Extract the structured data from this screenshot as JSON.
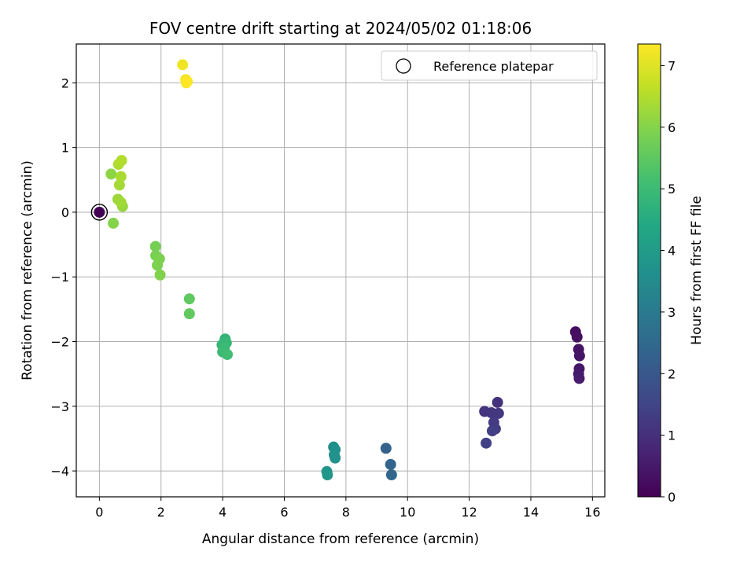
{
  "chart_data": {
    "type": "scatter",
    "title": "FOV centre drift starting at 2024/05/02 01:18:06",
    "xlabel": "Angular distance from reference (arcmin)",
    "ylabel": "Rotation from reference (arcmin)",
    "xlim": [
      -0.75,
      16.4
    ],
    "ylim": [
      -4.4,
      2.6
    ],
    "xticks": [
      0,
      2,
      4,
      6,
      8,
      10,
      12,
      14,
      16
    ],
    "yticks": [
      -4,
      -3,
      -2,
      -1,
      0,
      1,
      2
    ],
    "grid": true,
    "legend": {
      "position": "top-right",
      "entries": [
        "Reference platepar"
      ]
    },
    "reference_point": {
      "x": 0,
      "y": 0
    },
    "colorbar": {
      "label": "Hours from first FF file",
      "colormap": "viridis",
      "range": [
        0,
        7.35
      ],
      "ticks": [
        0,
        1,
        2,
        3,
        4,
        5,
        6,
        7
      ]
    },
    "points": [
      {
        "x": 0.0,
        "y": 0.0,
        "t": 0.0
      },
      {
        "x": 15.45,
        "y": -1.85,
        "t": 0.25
      },
      {
        "x": 15.5,
        "y": -1.93,
        "t": 0.3
      },
      {
        "x": 15.55,
        "y": -2.12,
        "t": 0.35
      },
      {
        "x": 15.58,
        "y": -2.22,
        "t": 0.4
      },
      {
        "x": 15.57,
        "y": -2.42,
        "t": 0.45
      },
      {
        "x": 15.55,
        "y": -2.5,
        "t": 0.5
      },
      {
        "x": 15.57,
        "y": -2.57,
        "t": 0.55
      },
      {
        "x": 12.92,
        "y": -2.94,
        "t": 1.05
      },
      {
        "x": 12.5,
        "y": -3.08,
        "t": 1.1
      },
      {
        "x": 12.72,
        "y": -3.1,
        "t": 1.15
      },
      {
        "x": 12.95,
        "y": -3.11,
        "t": 1.2
      },
      {
        "x": 12.8,
        "y": -3.25,
        "t": 1.25
      },
      {
        "x": 12.85,
        "y": -3.35,
        "t": 1.3
      },
      {
        "x": 12.75,
        "y": -3.38,
        "t": 1.35
      },
      {
        "x": 12.55,
        "y": -3.57,
        "t": 1.4
      },
      {
        "x": 9.3,
        "y": -3.65,
        "t": 2.3
      },
      {
        "x": 9.45,
        "y": -3.9,
        "t": 2.35
      },
      {
        "x": 9.48,
        "y": -4.06,
        "t": 2.4
      },
      {
        "x": 7.6,
        "y": -3.63,
        "t": 3.6
      },
      {
        "x": 7.65,
        "y": -3.67,
        "t": 3.65
      },
      {
        "x": 7.62,
        "y": -3.75,
        "t": 3.7
      },
      {
        "x": 7.65,
        "y": -3.8,
        "t": 3.7
      },
      {
        "x": 7.38,
        "y": -4.01,
        "t": 3.8
      },
      {
        "x": 7.4,
        "y": -4.06,
        "t": 3.85
      },
      {
        "x": 4.08,
        "y": -1.96,
        "t": 4.8
      },
      {
        "x": 3.98,
        "y": -2.05,
        "t": 4.85
      },
      {
        "x": 4.12,
        "y": -2.02,
        "t": 4.9
      },
      {
        "x": 4.05,
        "y": -2.1,
        "t": 4.95
      },
      {
        "x": 4.0,
        "y": -2.16,
        "t": 5.0
      },
      {
        "x": 4.15,
        "y": -2.2,
        "t": 5.05
      },
      {
        "x": 2.92,
        "y": -1.34,
        "t": 5.5
      },
      {
        "x": 2.92,
        "y": -1.57,
        "t": 5.55
      },
      {
        "x": 1.82,
        "y": -0.53,
        "t": 5.8
      },
      {
        "x": 1.83,
        "y": -0.67,
        "t": 5.85
      },
      {
        "x": 1.95,
        "y": -0.72,
        "t": 5.9
      },
      {
        "x": 1.88,
        "y": -0.82,
        "t": 5.9
      },
      {
        "x": 1.97,
        "y": -0.97,
        "t": 5.95
      },
      {
        "x": 0.45,
        "y": -0.17,
        "t": 6.0
      },
      {
        "x": 0.38,
        "y": 0.59,
        "t": 6.1
      },
      {
        "x": 0.75,
        "y": 0.09,
        "t": 6.2
      },
      {
        "x": 0.6,
        "y": 0.2,
        "t": 6.25
      },
      {
        "x": 0.7,
        "y": 0.15,
        "t": 6.3
      },
      {
        "x": 0.65,
        "y": 0.42,
        "t": 6.35
      },
      {
        "x": 0.7,
        "y": 0.55,
        "t": 6.4
      },
      {
        "x": 0.62,
        "y": 0.74,
        "t": 6.45
      },
      {
        "x": 0.72,
        "y": 0.8,
        "t": 6.5
      },
      {
        "x": 2.7,
        "y": 2.28,
        "t": 7.2
      },
      {
        "x": 2.8,
        "y": 2.05,
        "t": 7.25
      },
      {
        "x": 2.85,
        "y": 2.02,
        "t": 7.3
      },
      {
        "x": 2.82,
        "y": 2.0,
        "t": 7.35
      }
    ]
  }
}
